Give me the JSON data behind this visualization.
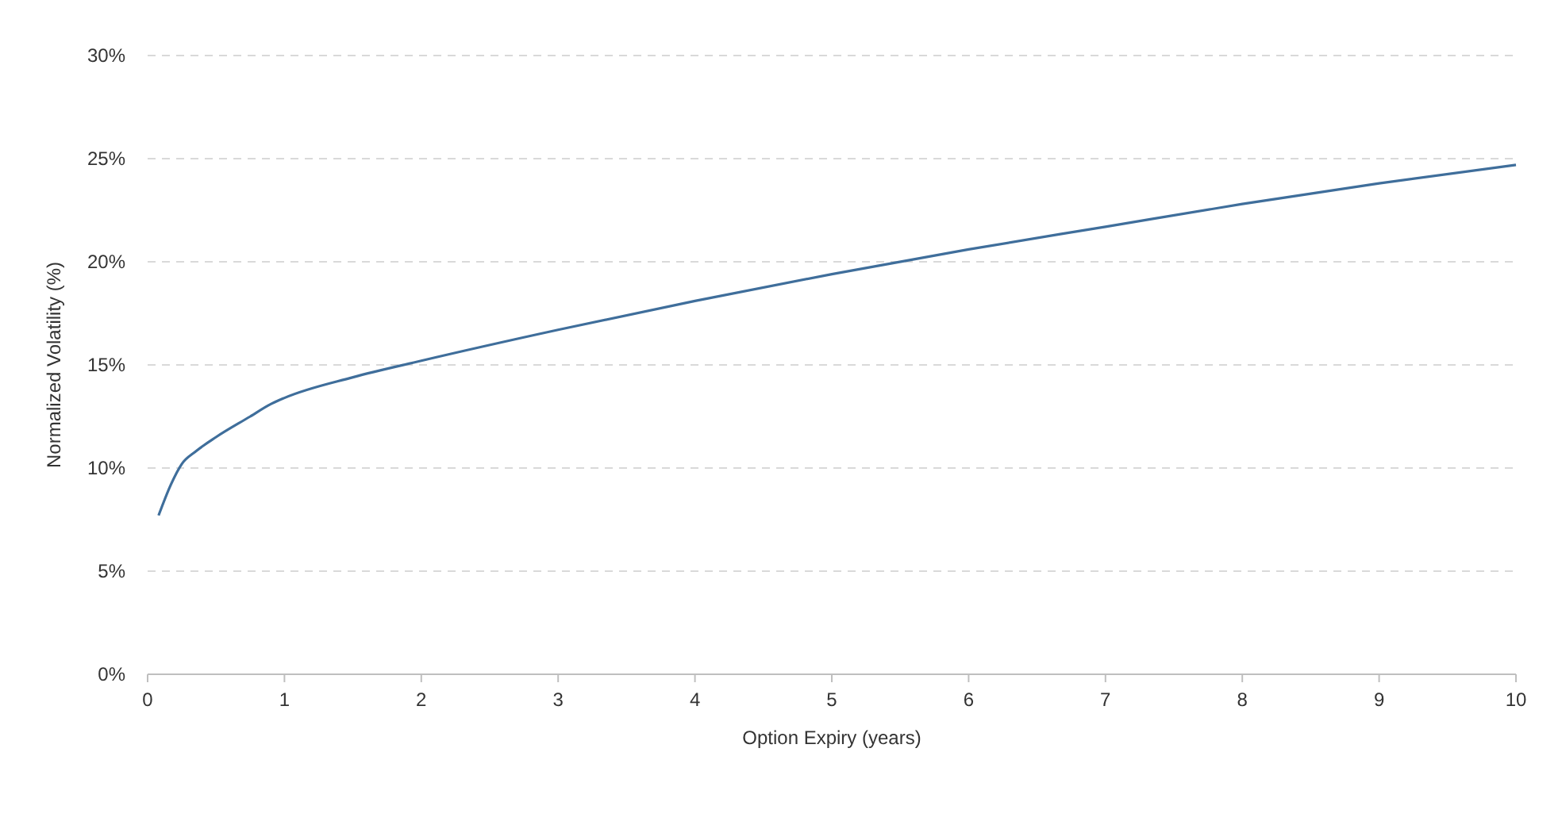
{
  "chart_data": {
    "type": "line",
    "xlabel": "Option Expiry (years)",
    "ylabel": "Normalized Volatility (%)",
    "x": [
      0.08,
      0.17,
      0.25,
      0.35,
      0.5,
      0.75,
      0.9,
      1,
      1.5,
      2,
      3,
      4,
      5,
      6,
      7,
      8,
      9,
      10
    ],
    "series": [
      {
        "color": "#3f6e9b",
        "values": [
          7.7,
          9.2,
          10.2,
          10.8,
          11.5,
          12.5,
          13.1,
          13.4,
          14.4,
          15.2,
          16.7,
          18.1,
          19.4,
          20.6,
          21.7,
          22.8,
          23.8,
          24.7
        ]
      }
    ],
    "xlim": [
      0,
      10
    ],
    "xticks": [
      0,
      1,
      2,
      3,
      4,
      5,
      6,
      7,
      8,
      9,
      10
    ],
    "ylim": [
      0,
      30
    ],
    "yticks": [
      {
        "value": 0,
        "label": "0%"
      },
      {
        "value": 5,
        "label": "5%"
      },
      {
        "value": 10,
        "label": "10%"
      },
      {
        "value": 15,
        "label": "15%"
      },
      {
        "value": 20,
        "label": "20%"
      },
      {
        "value": 25,
        "label": "25%"
      },
      {
        "value": 30,
        "label": "30%"
      }
    ],
    "grid": "y",
    "marker": "none",
    "line_style": "solid"
  }
}
